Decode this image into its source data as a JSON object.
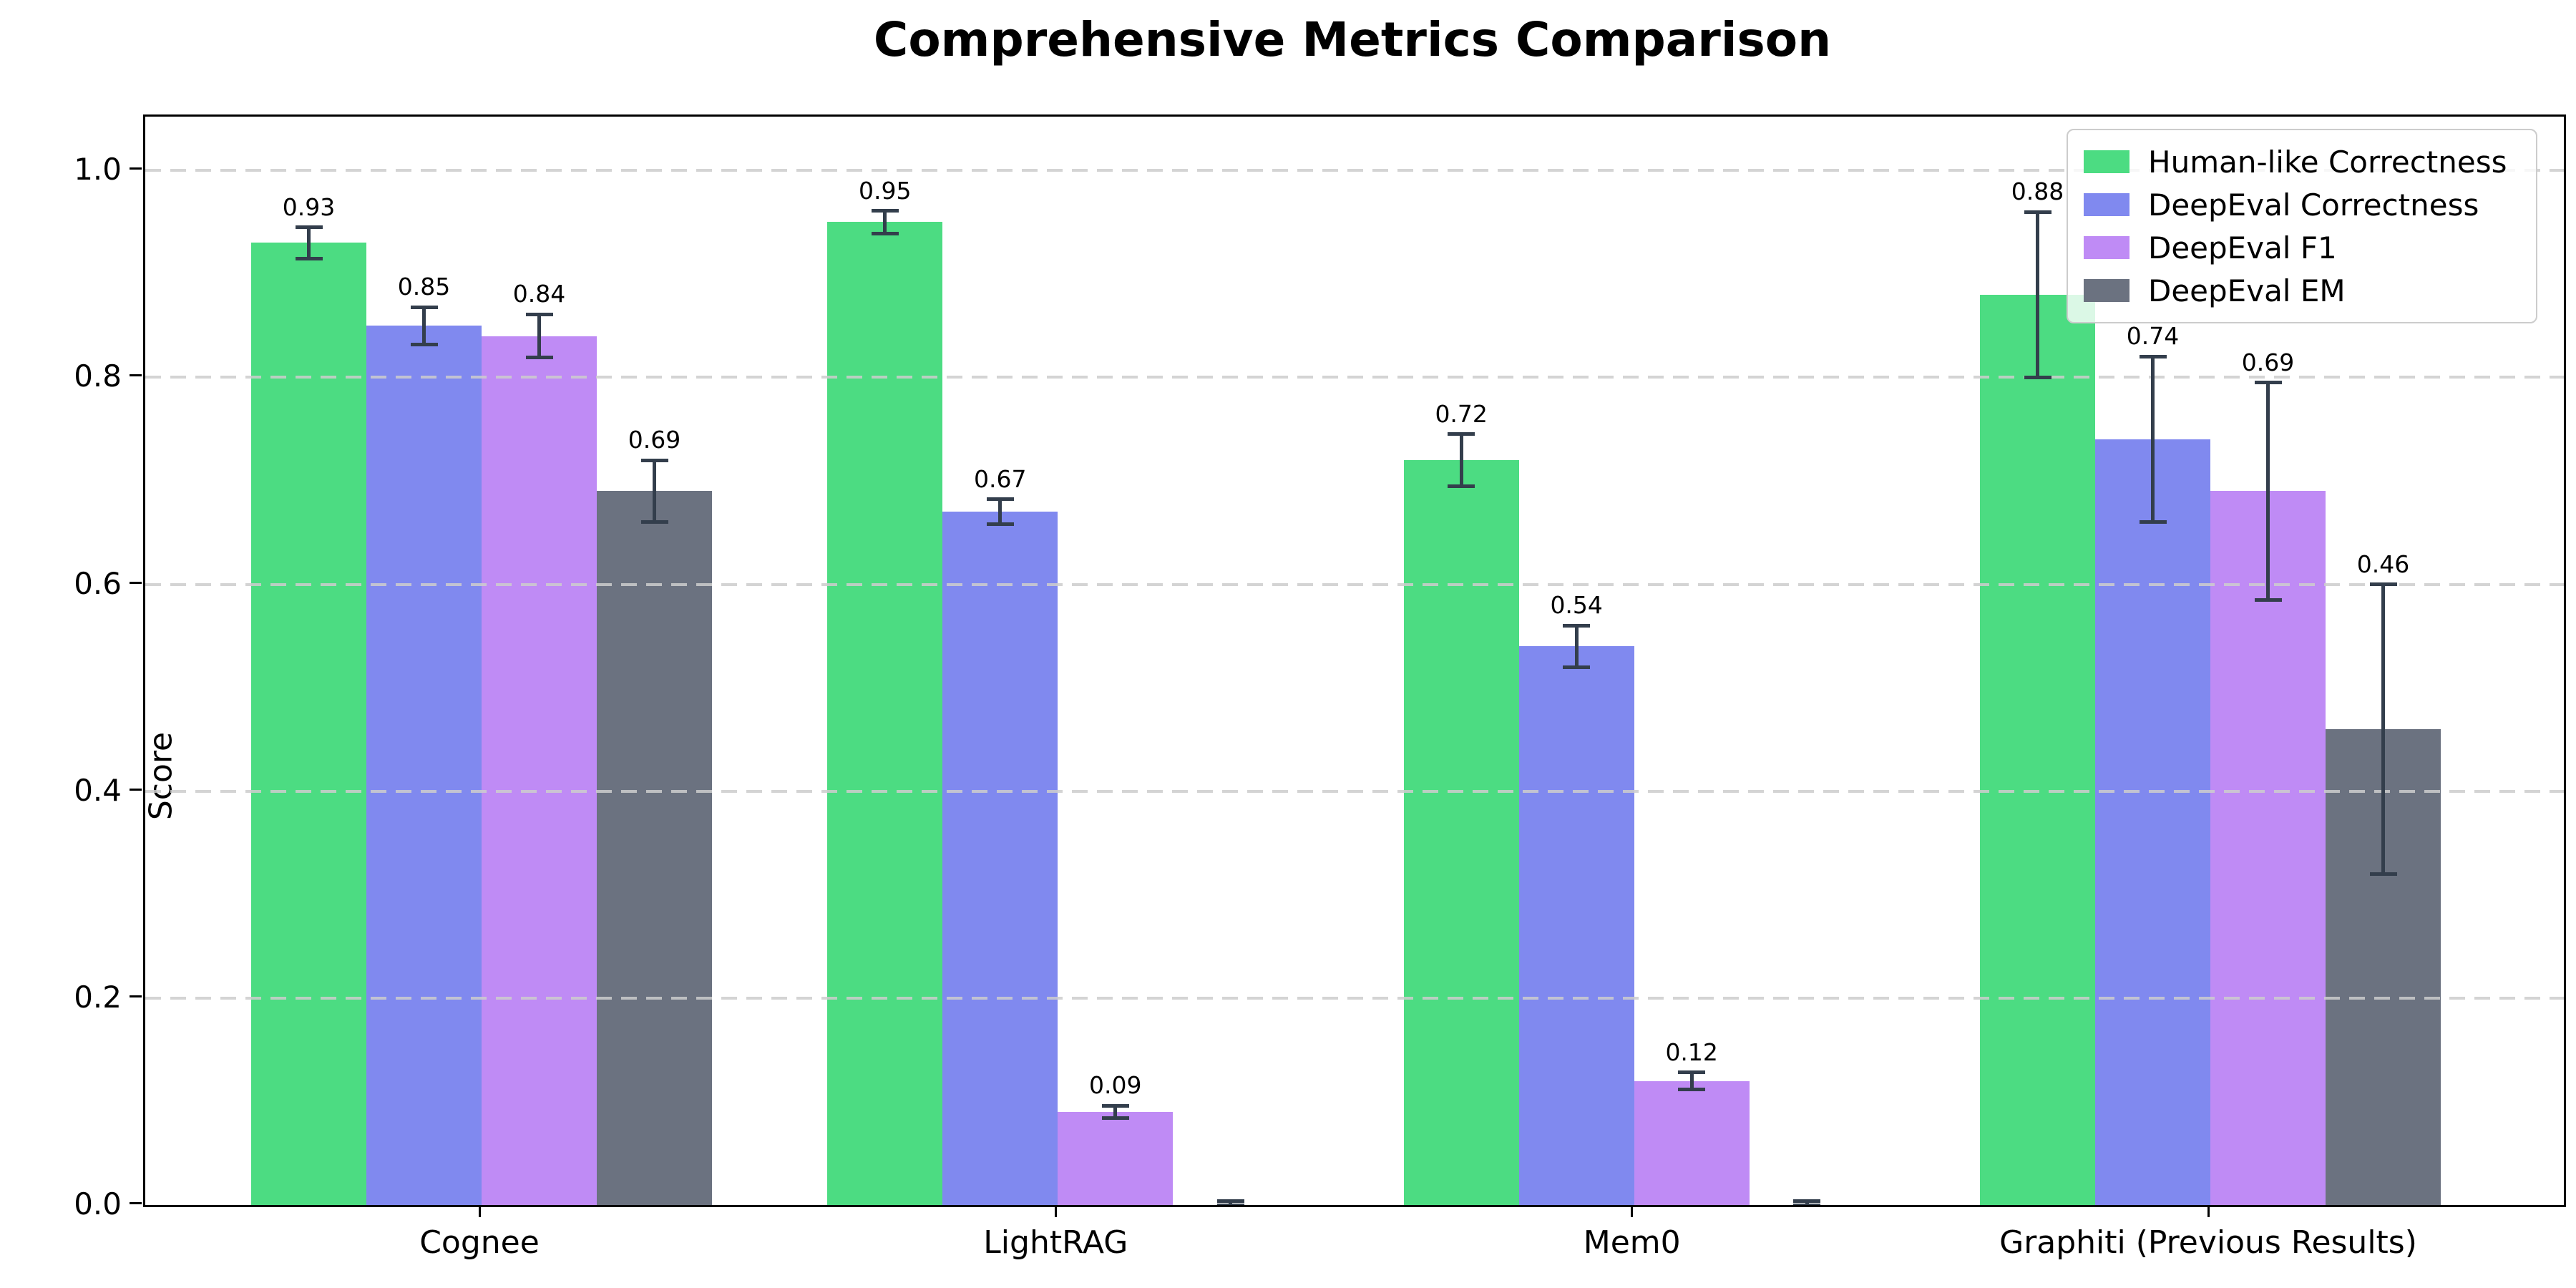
{
  "page_title": "Comprehensive Metrics Comparison",
  "chart_data": {
    "type": "bar",
    "title": "Comprehensive Metrics Comparison",
    "xlabel": "",
    "ylabel": "Score",
    "categories": [
      "Cognee",
      "LightRAG",
      "Mem0",
      "Graphiti (Previous Results)"
    ],
    "series": [
      {
        "name": "Human-like Correctness",
        "color": "#4cdc82",
        "values": [
          0.93,
          0.95,
          0.72,
          0.88
        ],
        "errors": [
          0.015,
          0.011,
          0.025,
          0.08
        ],
        "labels": [
          "0.93",
          "0.95",
          "0.72",
          "0.88"
        ]
      },
      {
        "name": "DeepEval Correctness",
        "color": "#8089ef",
        "values": [
          0.85,
          0.67,
          0.54,
          0.74
        ],
        "errors": [
          0.018,
          0.012,
          0.02,
          0.08
        ],
        "labels": [
          "0.85",
          "0.67",
          "0.54",
          "0.74"
        ]
      },
      {
        "name": "DeepEval F1",
        "color": "#bf8bf5",
        "values": [
          0.84,
          0.09,
          0.12,
          0.69
        ],
        "errors": [
          0.021,
          0.006,
          0.008,
          0.105
        ],
        "labels": [
          "0.84",
          "0.09",
          "0.12",
          "0.69"
        ]
      },
      {
        "name": "DeepEval EM",
        "color": "#6b7280",
        "values": [
          0.69,
          0.0,
          0.0,
          0.46
        ],
        "errors": [
          0.03,
          0.004,
          0.004,
          0.14
        ],
        "labels": [
          "0.69",
          "",
          "",
          "0.46"
        ]
      }
    ],
    "y_ticks": [
      "0.0",
      "0.2",
      "0.4",
      "0.6",
      "0.8",
      "1.0"
    ],
    "y_tick_values": [
      0.0,
      0.2,
      0.4,
      0.6,
      0.8,
      1.0
    ],
    "ylim": [
      0,
      1.052
    ],
    "grid": "horizontal-dashed",
    "grid_color": "#cdcdcd",
    "error_bar_color": "#333e4c",
    "legend_position": "top-right",
    "legend_entries": [
      "Human-like Correctness",
      "DeepEval Correctness",
      "DeepEval F1",
      "DeepEval EM"
    ]
  }
}
